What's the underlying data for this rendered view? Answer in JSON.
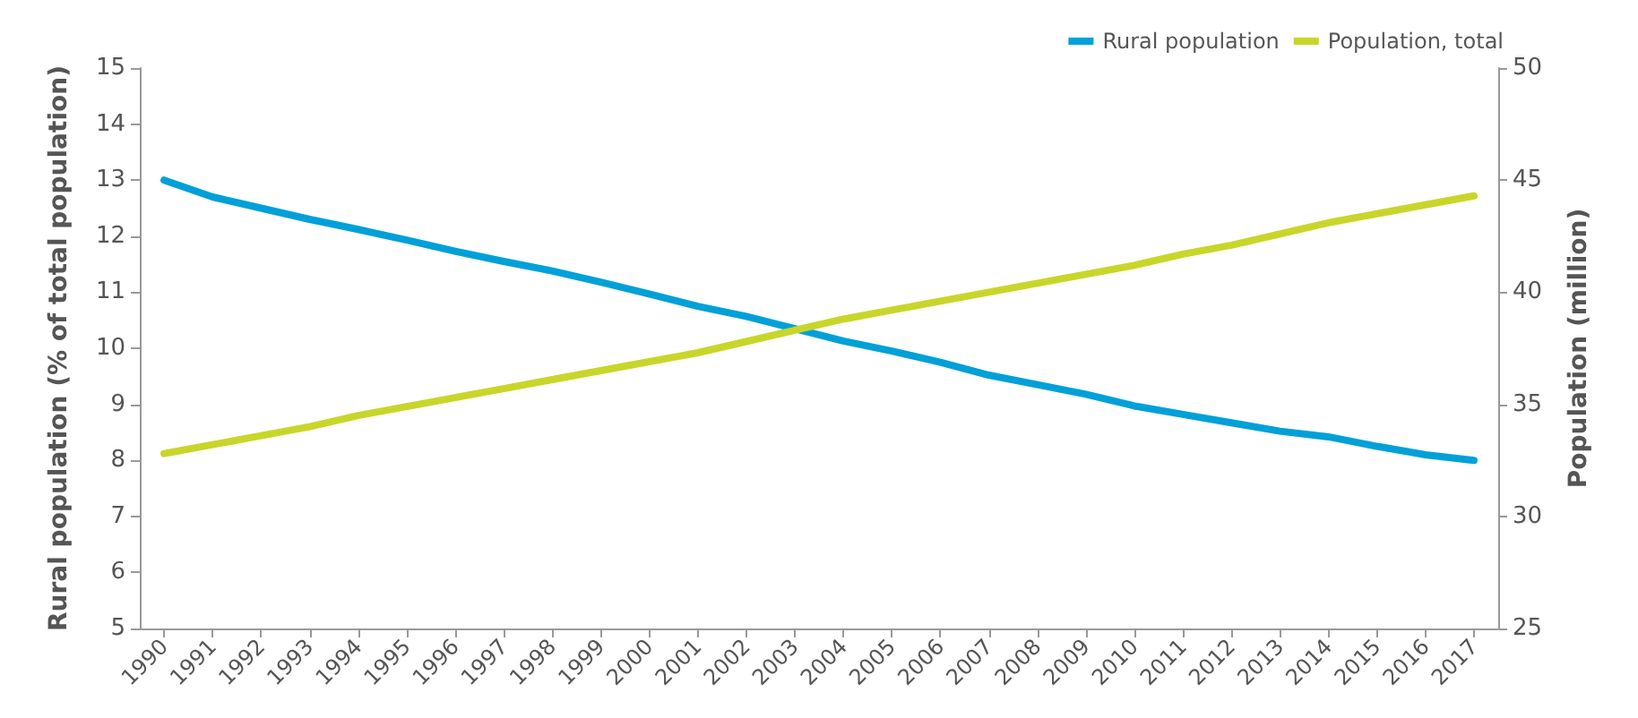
{
  "chart_data": {
    "type": "line",
    "categories": [
      "1990",
      "1991",
      "1992",
      "1993",
      "1994",
      "1995",
      "1996",
      "1997",
      "1998",
      "1999",
      "2000",
      "2001",
      "2002",
      "2003",
      "2004",
      "2005",
      "2006",
      "2007",
      "2008",
      "2009",
      "2010",
      "2011",
      "2012",
      "2013",
      "2014",
      "2015",
      "2016",
      "2017"
    ],
    "series": [
      {
        "name": "Rural population",
        "color": "#00a0d8",
        "values": [
          13.0,
          12.7,
          12.5,
          12.3,
          12.12,
          11.93,
          11.73,
          11.55,
          11.38,
          11.18,
          10.97,
          10.75,
          10.57,
          10.35,
          10.13,
          9.95,
          9.75,
          9.52,
          9.35,
          9.18,
          8.97,
          8.82,
          8.67,
          8.52,
          8.42,
          8.25,
          8.1,
          8.0
        ]
      },
      {
        "name": "Population, total",
        "color": "#c8d62a",
        "axis": "y2",
        "values": [
          32.8,
          33.2,
          33.6,
          34.0,
          34.5,
          34.9,
          35.3,
          35.7,
          36.1,
          36.5,
          36.9,
          37.3,
          37.8,
          38.3,
          38.8,
          39.2,
          39.6,
          40.0,
          40.4,
          40.8,
          41.2,
          41.7,
          42.1,
          42.6,
          43.1,
          43.5,
          43.9,
          44.3
        ]
      }
    ],
    "ylabel": "Rural population (% of total population)",
    "y2label": "Population (million)",
    "ylim": [
      5,
      15
    ],
    "yticks": [
      5,
      6,
      7,
      8,
      9,
      10,
      11,
      12,
      13,
      14,
      15
    ],
    "y2lim": [
      25,
      50
    ],
    "y2ticks": [
      25,
      30,
      35,
      40,
      45,
      50
    ],
    "legend": "top right",
    "grid": false,
    "marker": "none",
    "line_style": "solid"
  }
}
